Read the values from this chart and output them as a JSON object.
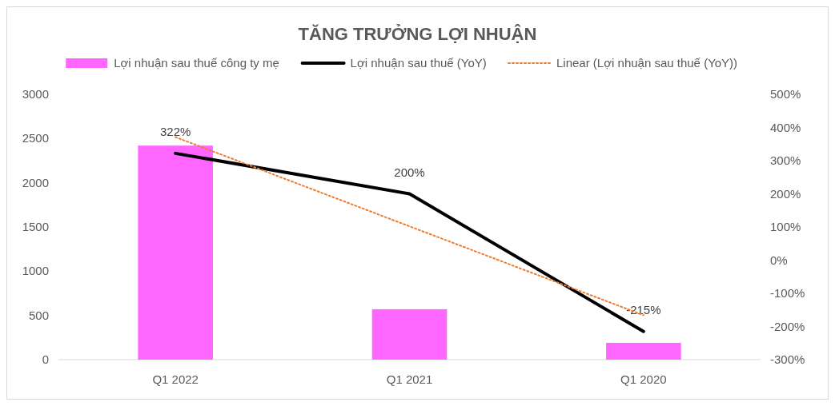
{
  "chart_data": {
    "type": "bar",
    "title": "TĂNG TRƯỞNG LỢI NHUẬN",
    "categories": [
      "Q1 2022",
      "Q1 2021",
      "Q1 2020"
    ],
    "series": [
      {
        "name": "Lợi nhuận sau thuế công ty mẹ",
        "color": "#ff66ff",
        "values": [
          2420,
          570,
          190
        ]
      },
      {
        "name": "Lợi nhuận sau thuế (YoY)",
        "type": "line",
        "axis": "y2",
        "color": "#000000",
        "values": [
          322,
          200,
          -215
        ],
        "value_labels": [
          "322%",
          "200%",
          "-215%"
        ]
      },
      {
        "name": "Linear (Lợi nhuận sau thuế (YoY))",
        "type": "line",
        "axis": "y2",
        "color": "#ed7d31",
        "line_style": "dotted",
        "values": [
          371,
          102,
          -166
        ]
      }
    ],
    "ylim": [
      0,
      3000
    ],
    "yticks": [
      0,
      500,
      1000,
      1500,
      2000,
      2500,
      3000
    ],
    "y2lim": [
      -300,
      500
    ],
    "y2ticks": [
      {
        "value": -300,
        "label": "-300%"
      },
      {
        "value": -200,
        "label": "-200%"
      },
      {
        "value": -100,
        "label": "-100%"
      },
      {
        "value": 0,
        "label": "0%"
      },
      {
        "value": 100,
        "label": "100%"
      },
      {
        "value": 200,
        "label": "200%"
      },
      {
        "value": 300,
        "label": "300%"
      },
      {
        "value": 400,
        "label": "400%"
      },
      {
        "value": 500,
        "label": "500%"
      }
    ],
    "legend": "top"
  }
}
